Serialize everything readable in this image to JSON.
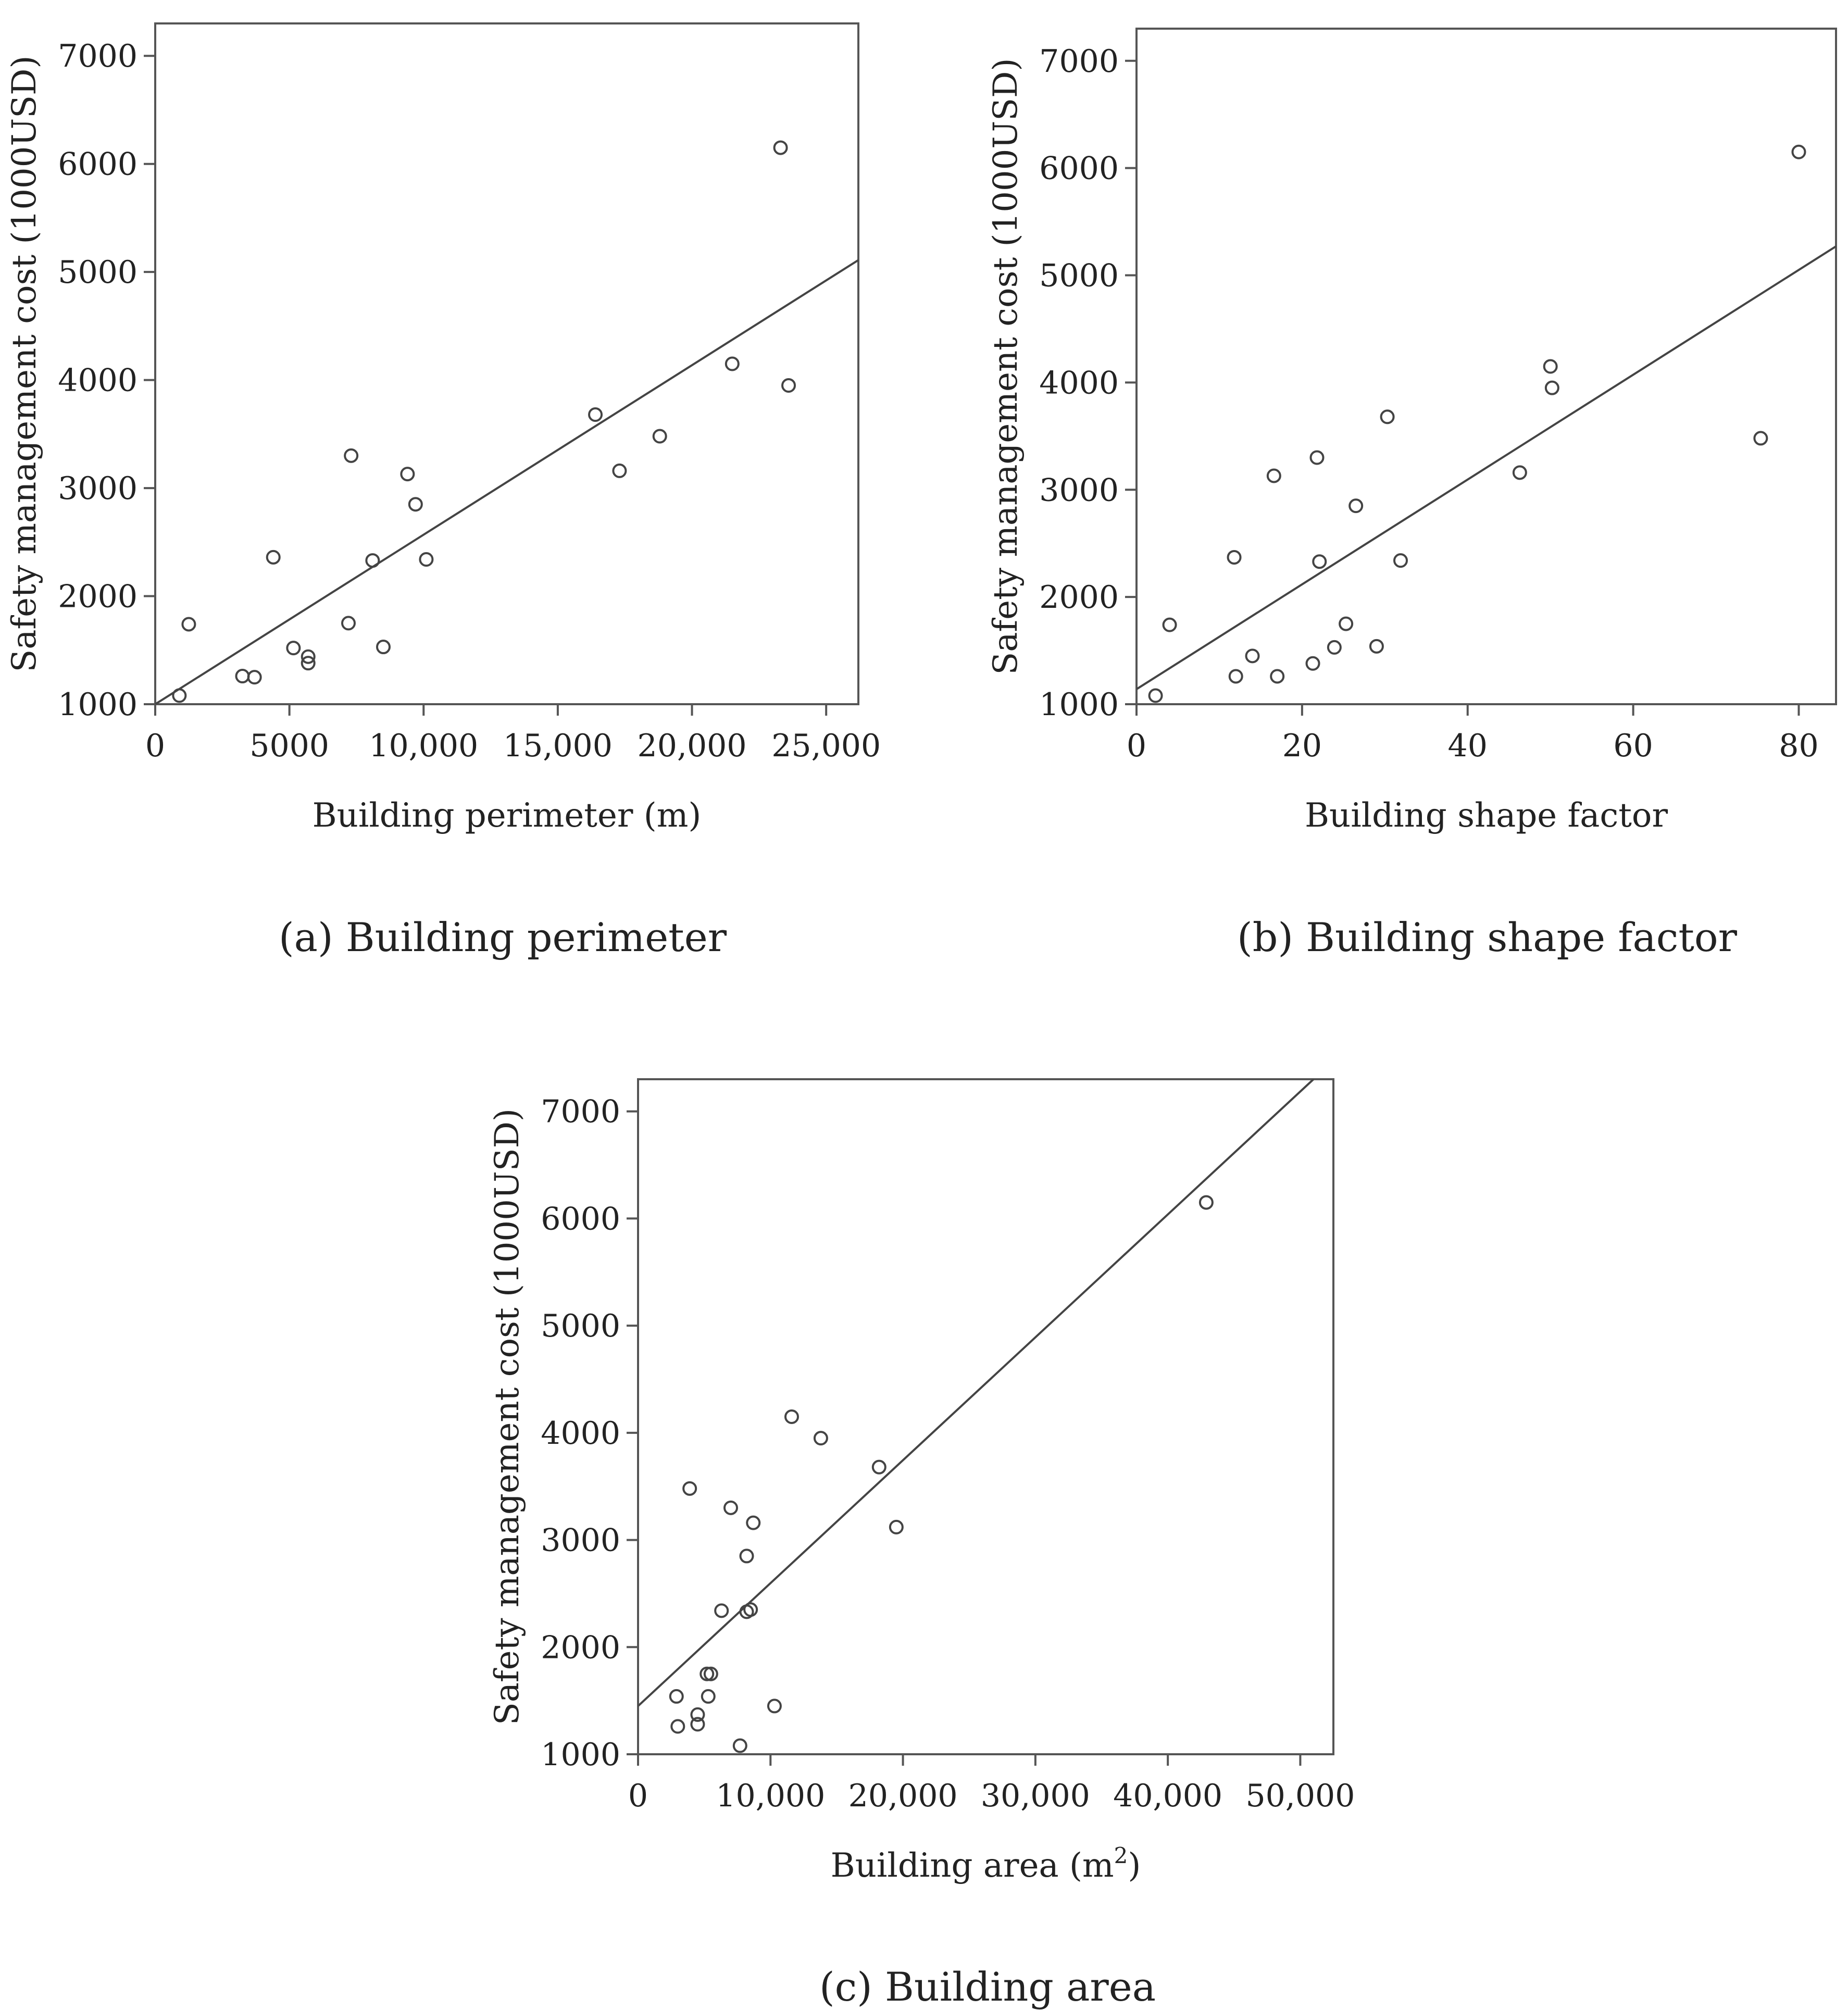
{
  "chart_data": [
    {
      "id": "perimeter",
      "type": "scatter",
      "caption": "(a) Building perimeter",
      "xlabel": "Building perimeter (m)",
      "ylabel": "Safety management cost (1000USD)",
      "xlim": [
        0,
        26200
      ],
      "ylim": [
        1000,
        7300
      ],
      "xticks": [
        0,
        5000,
        10000,
        15000,
        20000,
        25000
      ],
      "xtick_labels": [
        "0",
        "5000",
        "10,000",
        "15,000",
        "20,000",
        "25,000"
      ],
      "yticks": [
        1000,
        2000,
        3000,
        4000,
        5000,
        6000,
        7000
      ],
      "ytick_labels": [
        "1000",
        "2000",
        "3000",
        "4000",
        "5000",
        "6000",
        "7000"
      ],
      "points": [
        [
          900,
          1080
        ],
        [
          1250,
          1740
        ],
        [
          3250,
          1260
        ],
        [
          3700,
          1250
        ],
        [
          4400,
          2360
        ],
        [
          5150,
          1520
        ],
        [
          5700,
          1440
        ],
        [
          5700,
          1380
        ],
        [
          7200,
          1750
        ],
        [
          7300,
          3300
        ],
        [
          8100,
          2330
        ],
        [
          8500,
          1530
        ],
        [
          9400,
          3130
        ],
        [
          9700,
          2850
        ],
        [
          10100,
          2340
        ],
        [
          16400,
          3680
        ],
        [
          17300,
          3160
        ],
        [
          18800,
          3480
        ],
        [
          21500,
          4150
        ],
        [
          23300,
          6150
        ],
        [
          23600,
          3950
        ]
      ],
      "fit_line": [
        [
          0,
          1000
        ],
        [
          26200,
          5110
        ]
      ]
    },
    {
      "id": "shape",
      "type": "scatter",
      "caption": "(b) Building shape factor",
      "xlabel": "Building shape factor",
      "ylabel": "Safety management cost (1000USD)",
      "xlim": [
        0,
        84.5
      ],
      "ylim": [
        1000,
        7300
      ],
      "xticks": [
        0,
        20,
        40,
        60,
        80
      ],
      "xtick_labels": [
        "0",
        "20",
        "40",
        "60",
        "80"
      ],
      "yticks": [
        1000,
        2000,
        3000,
        4000,
        5000,
        6000,
        7000
      ],
      "ytick_labels": [
        "1000",
        "2000",
        "3000",
        "4000",
        "5000",
        "6000",
        "7000"
      ],
      "points": [
        [
          2.3,
          1080
        ],
        [
          4,
          1740
        ],
        [
          11.8,
          2370
        ],
        [
          12,
          1260
        ],
        [
          14,
          1450
        ],
        [
          16.6,
          3130
        ],
        [
          17,
          1260
        ],
        [
          21.3,
          1380
        ],
        [
          21.8,
          3300
        ],
        [
          22.1,
          2330
        ],
        [
          23.9,
          1530
        ],
        [
          25.3,
          1750
        ],
        [
          26.5,
          2850
        ],
        [
          29,
          1540
        ],
        [
          30.3,
          3680
        ],
        [
          31.9,
          2340
        ],
        [
          46.3,
          3160
        ],
        [
          50,
          4150
        ],
        [
          50.2,
          3950
        ],
        [
          75.4,
          3480
        ],
        [
          80,
          6150
        ]
      ],
      "fit_line": [
        [
          0,
          1140
        ],
        [
          84.5,
          5270
        ]
      ]
    },
    {
      "id": "area",
      "type": "scatter",
      "caption": "(c) Building area",
      "xlabel": "Building area (m",
      "xlabel_sup": "2",
      "xlabel_tail": ")",
      "ylabel": "Safety management cost (1000USD)",
      "xlim": [
        0,
        52500
      ],
      "ylim": [
        1000,
        7300
      ],
      "xticks": [
        0,
        10000,
        20000,
        30000,
        40000,
        50000
      ],
      "xtick_labels": [
        "0",
        "10,000",
        "20,000",
        "30,000",
        "40,000",
        "50,000"
      ],
      "yticks": [
        1000,
        2000,
        3000,
        4000,
        5000,
        6000,
        7000
      ],
      "ytick_labels": [
        "1000",
        "2000",
        "3000",
        "4000",
        "5000",
        "6000",
        "7000"
      ],
      "points": [
        [
          7700,
          1080
        ],
        [
          5200,
          1750
        ],
        [
          5500,
          1750
        ],
        [
          2900,
          1540
        ],
        [
          5300,
          1540
        ],
        [
          3000,
          1260
        ],
        [
          4500,
          1280
        ],
        [
          4500,
          1370
        ],
        [
          10300,
          1450
        ],
        [
          6300,
          2340
        ],
        [
          8200,
          2330
        ],
        [
          8500,
          2350
        ],
        [
          8200,
          2850
        ],
        [
          8700,
          3160
        ],
        [
          7000,
          3300
        ],
        [
          3900,
          3480
        ],
        [
          18200,
          3680
        ],
        [
          11600,
          4150
        ],
        [
          13800,
          3950
        ],
        [
          19500,
          3120
        ],
        [
          42900,
          6150
        ]
      ],
      "fit_line": [
        [
          0,
          1450
        ],
        [
          51000,
          7300
        ]
      ]
    }
  ]
}
